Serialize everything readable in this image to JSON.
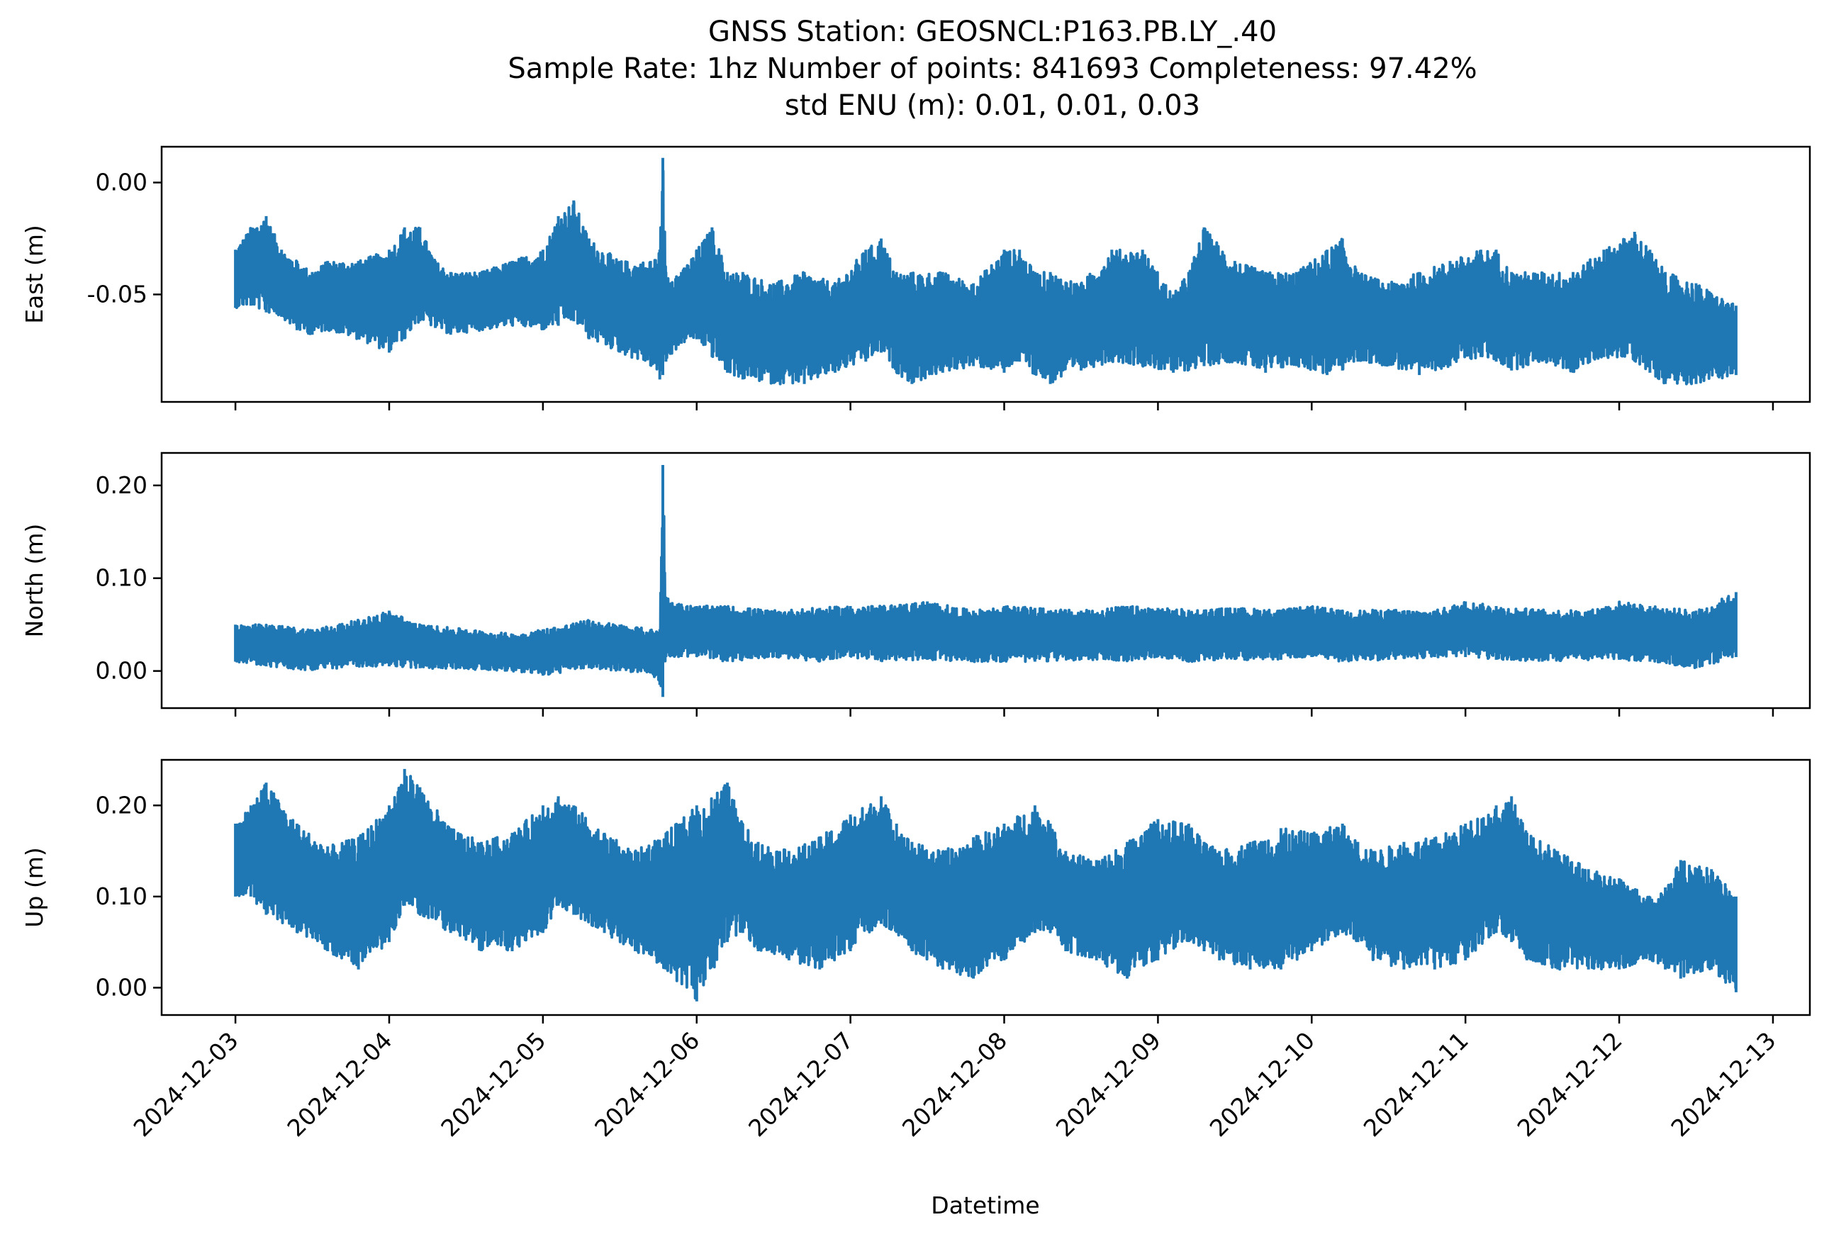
{
  "chart_data": {
    "type": "line",
    "title_lines": [
      "GNSS Station: GEOSNCL:P163.PB.LY_.40",
      "Sample Rate: 1hz   Number of points: 841693    Completeness:  97.42%",
      "std ENU (m):  0.01, 0.01, 0.03"
    ],
    "xlabel": "Datetime",
    "x_ticks": [
      "2024-12-03",
      "2024-12-04",
      "2024-12-05",
      "2024-12-06",
      "2024-12-07",
      "2024-12-08",
      "2024-12-09",
      "2024-12-10",
      "2024-12-11",
      "2024-12-12",
      "2024-12-13"
    ],
    "xlim_days": [
      -0.48,
      10.24
    ],
    "data_range_days": [
      0.0,
      9.76
    ],
    "color": "#1f77b4",
    "panels": [
      {
        "name": "east",
        "ylabel": "East (m)",
        "ylim": [
          -0.098,
          0.016
        ],
        "y_ticks": [
          0.0,
          -0.05
        ],
        "y_tick_labels": [
          "0.00",
          "-0.05"
        ],
        "envelope": {
          "t": [
            0.0,
            0.1,
            0.2,
            0.3,
            0.4,
            0.5,
            0.6,
            0.8,
            1.0,
            1.1,
            1.2,
            1.3,
            1.4,
            1.6,
            1.8,
            2.0,
            2.1,
            2.2,
            2.3,
            2.5,
            2.7,
            2.76,
            2.78,
            2.8,
            2.9,
            3.0,
            3.1,
            3.2,
            3.3,
            3.5,
            3.7,
            3.9,
            4.1,
            4.2,
            4.3,
            4.4,
            4.6,
            4.8,
            5.0,
            5.1,
            5.2,
            5.3,
            5.5,
            5.7,
            5.9,
            6.1,
            6.2,
            6.3,
            6.5,
            6.7,
            6.9,
            7.1,
            7.2,
            7.3,
            7.5,
            7.7,
            7.9,
            8.1,
            8.2,
            8.3,
            8.5,
            8.7,
            8.9,
            9.1,
            9.2,
            9.3,
            9.5,
            9.76
          ],
          "upper": [
            -0.03,
            -0.02,
            -0.015,
            -0.03,
            -0.035,
            -0.04,
            -0.035,
            -0.035,
            -0.03,
            -0.02,
            -0.02,
            -0.035,
            -0.04,
            -0.04,
            -0.035,
            -0.03,
            -0.015,
            -0.008,
            -0.025,
            -0.035,
            -0.035,
            -0.03,
            0.011,
            -0.04,
            -0.04,
            -0.03,
            -0.02,
            -0.04,
            -0.04,
            -0.045,
            -0.04,
            -0.045,
            -0.03,
            -0.025,
            -0.04,
            -0.04,
            -0.04,
            -0.045,
            -0.03,
            -0.03,
            -0.04,
            -0.04,
            -0.045,
            -0.03,
            -0.03,
            -0.05,
            -0.04,
            -0.02,
            -0.035,
            -0.04,
            -0.04,
            -0.03,
            -0.025,
            -0.04,
            -0.045,
            -0.04,
            -0.035,
            -0.03,
            -0.03,
            -0.04,
            -0.04,
            -0.04,
            -0.03,
            -0.022,
            -0.03,
            -0.04,
            -0.045,
            -0.055
          ],
          "lower": [
            -0.056,
            -0.055,
            -0.058,
            -0.06,
            -0.066,
            -0.068,
            -0.066,
            -0.07,
            -0.076,
            -0.07,
            -0.062,
            -0.065,
            -0.068,
            -0.066,
            -0.064,
            -0.066,
            -0.064,
            -0.062,
            -0.07,
            -0.076,
            -0.082,
            -0.088,
            -0.086,
            -0.08,
            -0.072,
            -0.07,
            -0.078,
            -0.085,
            -0.088,
            -0.09,
            -0.09,
            -0.085,
            -0.08,
            -0.076,
            -0.085,
            -0.09,
            -0.085,
            -0.082,
            -0.085,
            -0.08,
            -0.086,
            -0.09,
            -0.084,
            -0.08,
            -0.082,
            -0.085,
            -0.084,
            -0.082,
            -0.08,
            -0.085,
            -0.082,
            -0.086,
            -0.084,
            -0.08,
            -0.082,
            -0.086,
            -0.082,
            -0.078,
            -0.08,
            -0.084,
            -0.08,
            -0.085,
            -0.078,
            -0.08,
            -0.085,
            -0.09,
            -0.09,
            -0.086
          ]
        }
      },
      {
        "name": "north",
        "ylabel": "North (m)",
        "ylim": [
          -0.04,
          0.235
        ],
        "y_ticks": [
          0.0,
          0.1,
          0.2
        ],
        "y_tick_labels": [
          "0.00",
          "0.10",
          "0.20"
        ],
        "envelope": {
          "t": [
            0.0,
            0.2,
            0.5,
            0.8,
            1.0,
            1.2,
            1.5,
            1.8,
            2.0,
            2.3,
            2.5,
            2.7,
            2.76,
            2.78,
            2.8,
            2.9,
            3.0,
            3.2,
            3.5,
            3.8,
            4.0,
            4.2,
            4.5,
            4.8,
            5.0,
            5.2,
            5.5,
            5.8,
            6.0,
            6.2,
            6.5,
            6.8,
            7.0,
            7.2,
            7.5,
            7.8,
            8.0,
            8.2,
            8.5,
            8.8,
            9.0,
            9.2,
            9.5,
            9.76
          ],
          "upper": [
            0.05,
            0.05,
            0.045,
            0.055,
            0.065,
            0.05,
            0.045,
            0.04,
            0.045,
            0.055,
            0.05,
            0.045,
            0.045,
            0.222,
            0.08,
            0.072,
            0.07,
            0.07,
            0.065,
            0.068,
            0.07,
            0.07,
            0.075,
            0.065,
            0.07,
            0.068,
            0.065,
            0.07,
            0.068,
            0.066,
            0.068,
            0.066,
            0.07,
            0.065,
            0.066,
            0.065,
            0.075,
            0.07,
            0.066,
            0.065,
            0.075,
            0.07,
            0.065,
            0.085
          ],
          "lower": [
            0.01,
            0.005,
            0.0,
            0.005,
            0.005,
            0.003,
            0.002,
            0.0,
            -0.005,
            0.003,
            0.0,
            -0.002,
            -0.015,
            -0.028,
            0.015,
            0.015,
            0.015,
            0.01,
            0.015,
            0.01,
            0.015,
            0.01,
            0.012,
            0.01,
            0.01,
            0.01,
            0.012,
            0.01,
            0.015,
            0.01,
            0.012,
            0.012,
            0.015,
            0.01,
            0.012,
            0.015,
            0.015,
            0.012,
            0.01,
            0.012,
            0.012,
            0.01,
            0.003,
            0.015
          ]
        }
      },
      {
        "name": "up",
        "ylabel": "Up (m)",
        "ylim": [
          -0.03,
          0.25
        ],
        "y_ticks": [
          0.0,
          0.1,
          0.2
        ],
        "y_tick_labels": [
          "0.00",
          "0.10",
          "0.20"
        ],
        "envelope": {
          "t": [
            0.0,
            0.1,
            0.2,
            0.4,
            0.6,
            0.8,
            1.0,
            1.1,
            1.2,
            1.4,
            1.6,
            1.8,
            2.0,
            2.1,
            2.2,
            2.4,
            2.6,
            2.8,
            3.0,
            3.2,
            3.3,
            3.4,
            3.6,
            3.8,
            4.0,
            4.2,
            4.3,
            4.4,
            4.6,
            4.8,
            5.0,
            5.2,
            5.3,
            5.4,
            5.6,
            5.8,
            6.0,
            6.2,
            6.3,
            6.4,
            6.6,
            6.8,
            7.0,
            7.2,
            7.3,
            7.4,
            7.6,
            7.8,
            8.0,
            8.2,
            8.3,
            8.4,
            8.6,
            8.8,
            9.0,
            9.2,
            9.3,
            9.4,
            9.6,
            9.76
          ],
          "upper": [
            0.18,
            0.2,
            0.225,
            0.18,
            0.155,
            0.165,
            0.2,
            0.24,
            0.22,
            0.175,
            0.16,
            0.17,
            0.2,
            0.21,
            0.2,
            0.17,
            0.15,
            0.17,
            0.2,
            0.225,
            0.18,
            0.16,
            0.15,
            0.165,
            0.19,
            0.21,
            0.18,
            0.16,
            0.15,
            0.165,
            0.18,
            0.2,
            0.18,
            0.15,
            0.14,
            0.16,
            0.185,
            0.18,
            0.16,
            0.15,
            0.16,
            0.175,
            0.17,
            0.18,
            0.16,
            0.15,
            0.16,
            0.165,
            0.18,
            0.2,
            0.21,
            0.17,
            0.15,
            0.13,
            0.12,
            0.1,
            0.11,
            0.14,
            0.13,
            0.1
          ],
          "lower": [
            0.1,
            0.1,
            0.08,
            0.06,
            0.04,
            0.02,
            0.05,
            0.09,
            0.08,
            0.06,
            0.04,
            0.04,
            0.06,
            0.09,
            0.08,
            0.06,
            0.04,
            0.02,
            -0.015,
            0.05,
            0.06,
            0.04,
            0.03,
            0.02,
            0.04,
            0.07,
            0.06,
            0.04,
            0.02,
            0.01,
            0.03,
            0.06,
            0.06,
            0.04,
            0.03,
            0.01,
            0.03,
            0.05,
            0.04,
            0.03,
            0.02,
            0.02,
            0.04,
            0.06,
            0.05,
            0.03,
            0.02,
            0.02,
            0.03,
            0.06,
            0.05,
            0.03,
            0.02,
            0.02,
            0.02,
            0.03,
            0.02,
            0.01,
            0.02,
            -0.005
          ]
        }
      }
    ]
  }
}
